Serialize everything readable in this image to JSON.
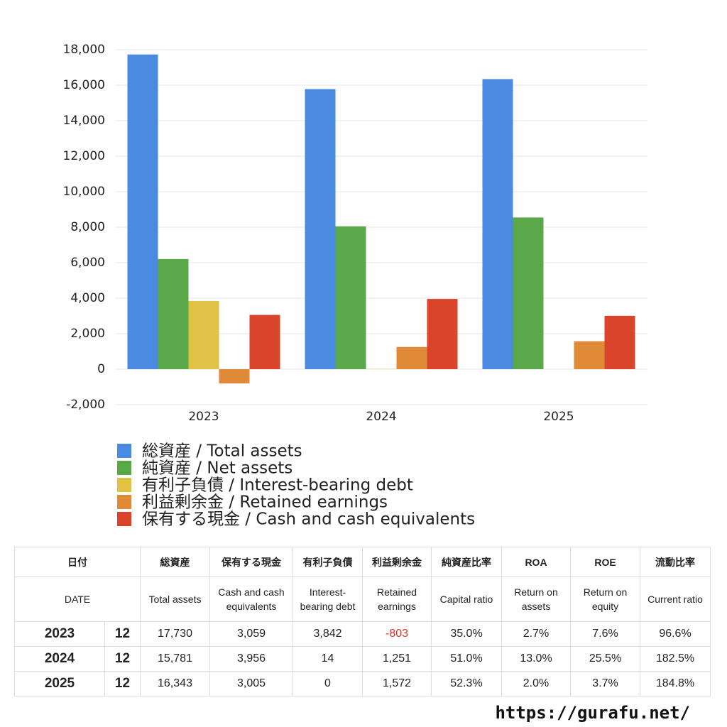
{
  "chart_data": {
    "type": "bar",
    "categories": [
      "2023",
      "2024",
      "2025"
    ],
    "series": [
      {
        "name": "総資産 / Total assets",
        "color": "#4a8ae0",
        "values": [
          17730,
          15781,
          16343
        ]
      },
      {
        "name": "純資産 / Net assets",
        "color": "#5aa84a",
        "values": [
          6206,
          8048,
          8547
        ]
      },
      {
        "name": "有利子負債 / Interest-bearing debt",
        "color": "#e2c244",
        "values": [
          3842,
          14,
          0
        ]
      },
      {
        "name": "利益剰余金 / Retained earnings",
        "color": "#e08a38",
        "values": [
          -803,
          1251,
          1572
        ]
      },
      {
        "name": "保有する現金 /  Cash and cash equivalents",
        "color": "#d9442a",
        "values": [
          3059,
          3956,
          3005
        ]
      }
    ],
    "ylim": [
      -2000,
      18000
    ],
    "yticks": [
      {
        "value": -2000,
        "label": "-2,000"
      },
      0,
      {
        "value": 2000,
        "label": "2,000"
      },
      {
        "value": 4000,
        "label": "4,000"
      },
      {
        "value": 6000,
        "label": "6,000"
      },
      {
        "value": 8000,
        "label": "8,000"
      },
      {
        "value": 10000,
        "label": "10,000"
      },
      {
        "value": 12000,
        "label": "12,000"
      },
      {
        "value": 14000,
        "label": "14,000"
      },
      {
        "value": 16000,
        "label": "16,000"
      },
      {
        "value": 18000,
        "label": "18,000"
      }
    ],
    "grid": true
  },
  "table": {
    "header": [
      [
        "日付",
        "総資産",
        "保有する現金",
        "有利子負債",
        "利益剰余金",
        "純資産比率",
        "ROA",
        "ROE",
        "流動比率"
      ],
      [
        "DATE",
        "Total assets",
        "Cash and cash equivalents",
        "Interest-bearing debt",
        "Retained earnings",
        "Capital ratio",
        "Return on assets",
        "Return on equity",
        "Current ratio"
      ]
    ],
    "rows": [
      [
        "2023",
        "12",
        "17,730",
        "3,059",
        "3,842",
        "-803",
        "35.0%",
        "2.7%",
        "7.6%",
        "96.6%"
      ],
      [
        "2024",
        "12",
        "15,781",
        "3,956",
        "14",
        "1,251",
        "51.0%",
        "13.0%",
        "25.5%",
        "182.5%"
      ],
      [
        "2025",
        "12",
        "16,343",
        "3,005",
        "0",
        "1,572",
        "52.3%",
        "2.0%",
        "3.7%",
        "184.8%"
      ]
    ],
    "negative_color": "#d9342b"
  },
  "footer": "https://gurafu.net/"
}
